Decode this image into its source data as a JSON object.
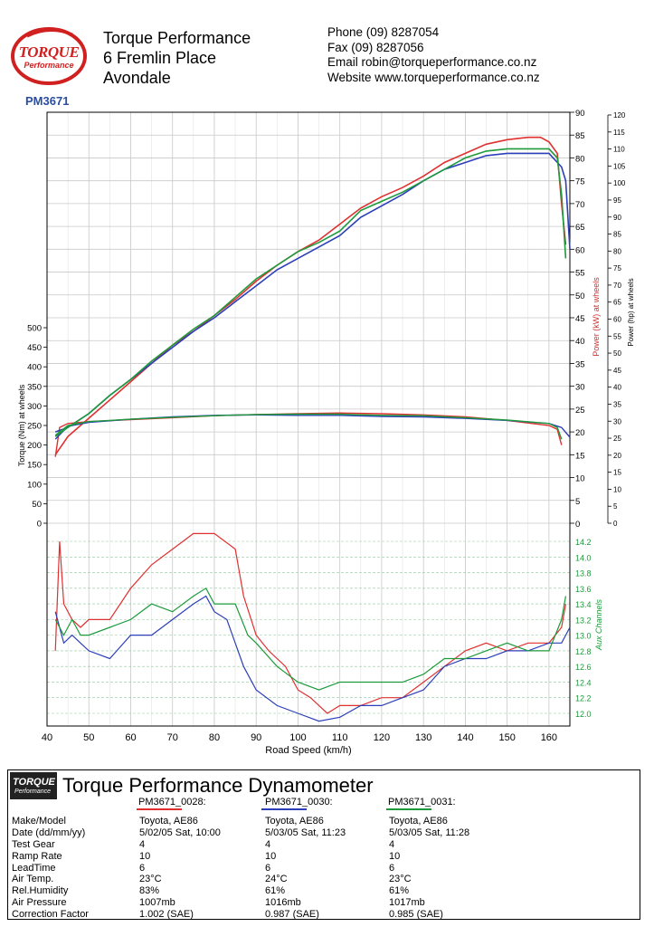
{
  "header": {
    "logo_word": "TORQUE",
    "logo_sub": "Performance",
    "report_id": "PM3671",
    "company_lines": [
      "Torque Performance",
      "6 Fremlin Place",
      "Avondale"
    ],
    "contact": {
      "phone": "Phone (09) 8287054",
      "fax": "Fax     (09) 8287056",
      "email": "Email  robin@torqueperformance.co.nz",
      "website": "Website  www.torqueperformance.co.nz"
    }
  },
  "colors": {
    "run1": "#e03030",
    "run2": "#2c3fb8",
    "run3": "#1e9a3c",
    "grid": "#c8c8c8",
    "aux_axis": "#1e9a3c",
    "power_axis": "#d03030"
  },
  "chart_data": {
    "type": "line",
    "x": {
      "label": "Road Speed (km/h)",
      "min": 40,
      "max": 165,
      "ticks": [
        "40",
        "50",
        "60",
        "70",
        "80",
        "90",
        "100",
        "110",
        "120",
        "130",
        "140",
        "150",
        "160"
      ]
    },
    "y_torque": {
      "label": "Torque (Nm) at wheels",
      "min": 0,
      "max": 500,
      "ticks": [
        "0",
        "50",
        "100",
        "150",
        "200",
        "250",
        "300",
        "350",
        "400",
        "450",
        "500"
      ]
    },
    "y_power_kw": {
      "label": "Power (kW) at wheels",
      "min": 0,
      "max": 90,
      "ticks": [
        "0",
        "5",
        "10",
        "15",
        "20",
        "25",
        "30",
        "35",
        "40",
        "45",
        "50",
        "55",
        "60",
        "65",
        "70",
        "75",
        "80",
        "85",
        "90"
      ]
    },
    "y_power_hp": {
      "label": "Power (hp) at wheels",
      "min": 0,
      "max": 120,
      "ticks": [
        "0",
        "5",
        "10",
        "15",
        "20",
        "25",
        "30",
        "35",
        "40",
        "45",
        "50",
        "55",
        "60",
        "65",
        "70",
        "75",
        "80",
        "85",
        "90",
        "95",
        "100",
        "105",
        "110",
        "115",
        "120"
      ]
    },
    "y_aux": {
      "label": "Aux Channels",
      "min": 11.9,
      "max": 14.3,
      "ticks": [
        "12.0",
        "12.2",
        "12.4",
        "12.6",
        "12.8",
        "13.0",
        "13.2",
        "13.4",
        "13.6",
        "13.8",
        "14.0",
        "14.2"
      ]
    },
    "grid": true,
    "series": [
      {
        "name": "PM3671_0028",
        "color_key": "run1",
        "power_kw": [
          [
            42,
            15
          ],
          [
            45,
            19
          ],
          [
            50,
            23
          ],
          [
            55,
            27
          ],
          [
            60,
            31
          ],
          [
            65,
            35
          ],
          [
            70,
            39
          ],
          [
            75,
            42
          ],
          [
            80,
            45.5
          ],
          [
            85,
            49
          ],
          [
            90,
            53
          ],
          [
            95,
            56.5
          ],
          [
            100,
            59.5
          ],
          [
            105,
            62
          ],
          [
            110,
            65.5
          ],
          [
            115,
            69
          ],
          [
            120,
            71.5
          ],
          [
            125,
            73.5
          ],
          [
            130,
            76
          ],
          [
            135,
            79
          ],
          [
            140,
            81
          ],
          [
            145,
            83
          ],
          [
            150,
            84
          ],
          [
            155,
            84.5
          ],
          [
            158,
            84.5
          ],
          [
            160,
            83.5
          ],
          [
            162,
            81
          ],
          [
            163,
            70
          ],
          [
            164,
            61
          ]
        ],
        "torque": [
          [
            42,
            170
          ],
          [
            43,
            245
          ],
          [
            45,
            255
          ],
          [
            50,
            260
          ],
          [
            60,
            265
          ],
          [
            70,
            270
          ],
          [
            80,
            275
          ],
          [
            90,
            278
          ],
          [
            100,
            280
          ],
          [
            110,
            282
          ],
          [
            120,
            280
          ],
          [
            130,
            277
          ],
          [
            140,
            272
          ],
          [
            150,
            263
          ],
          [
            160,
            250
          ],
          [
            162,
            240
          ],
          [
            163,
            200
          ]
        ],
        "aux": [
          [
            42,
            12.8
          ],
          [
            43,
            14.2
          ],
          [
            44,
            13.4
          ],
          [
            46,
            13.2
          ],
          [
            48,
            13.1
          ],
          [
            50,
            13.2
          ],
          [
            55,
            13.2
          ],
          [
            60,
            13.6
          ],
          [
            65,
            13.9
          ],
          [
            70,
            14.1
          ],
          [
            75,
            14.3
          ],
          [
            80,
            14.3
          ],
          [
            85,
            14.1
          ],
          [
            87,
            13.5
          ],
          [
            90,
            13.0
          ],
          [
            93,
            12.8
          ],
          [
            97,
            12.6
          ],
          [
            100,
            12.3
          ],
          [
            103,
            12.2
          ],
          [
            107,
            12.0
          ],
          [
            110,
            12.1
          ],
          [
            115,
            12.1
          ],
          [
            120,
            12.2
          ],
          [
            125,
            12.2
          ],
          [
            130,
            12.4
          ],
          [
            135,
            12.6
          ],
          [
            140,
            12.8
          ],
          [
            145,
            12.9
          ],
          [
            150,
            12.8
          ],
          [
            155,
            12.9
          ],
          [
            160,
            12.9
          ],
          [
            163,
            13.1
          ],
          [
            164,
            13.4
          ]
        ]
      },
      {
        "name": "PM3671_0030",
        "color_key": "run2",
        "power_kw": [
          [
            42,
            20
          ],
          [
            45,
            21
          ],
          [
            50,
            24
          ],
          [
            55,
            28
          ],
          [
            60,
            31.5
          ],
          [
            65,
            35
          ],
          [
            70,
            38.5
          ],
          [
            75,
            42
          ],
          [
            80,
            45
          ],
          [
            85,
            48.5
          ],
          [
            90,
            52
          ],
          [
            95,
            55.5
          ],
          [
            100,
            58
          ],
          [
            105,
            60.5
          ],
          [
            110,
            63
          ],
          [
            115,
            67
          ],
          [
            120,
            69.5
          ],
          [
            125,
            72
          ],
          [
            130,
            75
          ],
          [
            135,
            77.5
          ],
          [
            140,
            79
          ],
          [
            145,
            80.5
          ],
          [
            150,
            81
          ],
          [
            155,
            81
          ],
          [
            160,
            81
          ],
          [
            163,
            78
          ],
          [
            164,
            75
          ],
          [
            165,
            60
          ]
        ],
        "torque": [
          [
            42,
            215
          ],
          [
            45,
            248
          ],
          [
            50,
            258
          ],
          [
            60,
            266
          ],
          [
            70,
            272
          ],
          [
            80,
            276
          ],
          [
            90,
            277
          ],
          [
            100,
            276
          ],
          [
            110,
            276
          ],
          [
            120,
            273
          ],
          [
            130,
            272
          ],
          [
            140,
            268
          ],
          [
            150,
            263
          ],
          [
            160,
            255
          ],
          [
            163,
            245
          ],
          [
            165,
            220
          ]
        ],
        "aux": [
          [
            42,
            13.3
          ],
          [
            44,
            12.9
          ],
          [
            46,
            13.0
          ],
          [
            48,
            12.9
          ],
          [
            50,
            12.8
          ],
          [
            55,
            12.7
          ],
          [
            60,
            13.0
          ],
          [
            65,
            13.0
          ],
          [
            70,
            13.2
          ],
          [
            75,
            13.4
          ],
          [
            78,
            13.5
          ],
          [
            80,
            13.3
          ],
          [
            83,
            13.2
          ],
          [
            87,
            12.6
          ],
          [
            90,
            12.3
          ],
          [
            95,
            12.1
          ],
          [
            100,
            12.0
          ],
          [
            105,
            11.9
          ],
          [
            110,
            11.95
          ],
          [
            115,
            12.1
          ],
          [
            120,
            12.1
          ],
          [
            125,
            12.2
          ],
          [
            130,
            12.3
          ],
          [
            135,
            12.6
          ],
          [
            140,
            12.7
          ],
          [
            145,
            12.7
          ],
          [
            150,
            12.8
          ],
          [
            155,
            12.8
          ],
          [
            160,
            12.9
          ],
          [
            163,
            12.9
          ],
          [
            165,
            13.1
          ]
        ]
      },
      {
        "name": "PM3671_0031",
        "color_key": "run3",
        "power_kw": [
          [
            42,
            19
          ],
          [
            45,
            21
          ],
          [
            50,
            24
          ],
          [
            55,
            28
          ],
          [
            60,
            31.5
          ],
          [
            65,
            35.5
          ],
          [
            70,
            39
          ],
          [
            75,
            42.5
          ],
          [
            80,
            45.5
          ],
          [
            85,
            49.5
          ],
          [
            90,
            53.5
          ],
          [
            95,
            56.5
          ],
          [
            100,
            59.5
          ],
          [
            105,
            61.5
          ],
          [
            110,
            64
          ],
          [
            115,
            68.5
          ],
          [
            120,
            70.5
          ],
          [
            125,
            72.5
          ],
          [
            130,
            75
          ],
          [
            135,
            77.5
          ],
          [
            140,
            80
          ],
          [
            145,
            81.5
          ],
          [
            150,
            82
          ],
          [
            155,
            82
          ],
          [
            160,
            82
          ],
          [
            162,
            80
          ],
          [
            163,
            72
          ],
          [
            164,
            58
          ]
        ],
        "torque": [
          [
            42,
            225
          ],
          [
            45,
            250
          ],
          [
            50,
            260
          ],
          [
            60,
            266
          ],
          [
            70,
            271
          ],
          [
            80,
            275
          ],
          [
            90,
            278
          ],
          [
            100,
            279
          ],
          [
            110,
            279
          ],
          [
            120,
            276
          ],
          [
            130,
            275
          ],
          [
            140,
            270
          ],
          [
            150,
            264
          ],
          [
            160,
            255
          ],
          [
            162,
            245
          ],
          [
            163,
            215
          ]
        ],
        "aux": [
          [
            42,
            13.2
          ],
          [
            44,
            13.0
          ],
          [
            46,
            13.2
          ],
          [
            48,
            13.0
          ],
          [
            50,
            13.0
          ],
          [
            55,
            13.1
          ],
          [
            60,
            13.2
          ],
          [
            65,
            13.4
          ],
          [
            70,
            13.3
          ],
          [
            75,
            13.5
          ],
          [
            78,
            13.6
          ],
          [
            80,
            13.4
          ],
          [
            85,
            13.4
          ],
          [
            88,
            13.0
          ],
          [
            90,
            12.9
          ],
          [
            95,
            12.6
          ],
          [
            100,
            12.4
          ],
          [
            105,
            12.3
          ],
          [
            110,
            12.4
          ],
          [
            115,
            12.4
          ],
          [
            120,
            12.4
          ],
          [
            125,
            12.4
          ],
          [
            130,
            12.5
          ],
          [
            135,
            12.7
          ],
          [
            140,
            12.7
          ],
          [
            145,
            12.8
          ],
          [
            150,
            12.9
          ],
          [
            155,
            12.8
          ],
          [
            160,
            12.8
          ],
          [
            163,
            13.2
          ],
          [
            164,
            13.5
          ]
        ]
      }
    ]
  },
  "footer": {
    "title": "Torque Performance Dynamometer",
    "logo_word": "TORQUE",
    "logo_sub": "Performance",
    "runs": [
      "PM3671_0028:",
      "PM3671_0030:",
      "PM3671_0031:"
    ],
    "rows": [
      {
        "label": "Make/Model",
        "values": [
          "Toyota, AE86",
          "Toyota, AE86",
          "Toyota, AE86"
        ]
      },
      {
        "label": "Date (dd/mm/yy)",
        "values": [
          "5/02/05 Sat, 10:00",
          "5/03/05 Sat, 11:23",
          "5/03/05 Sat, 11:28"
        ]
      },
      {
        "label": "Test Gear",
        "values": [
          "4",
          "4",
          "4"
        ]
      },
      {
        "label": "Ramp Rate",
        "values": [
          "10",
          "10",
          "10"
        ]
      },
      {
        "label": "LeadTime",
        "values": [
          "6",
          "6",
          "6"
        ]
      },
      {
        "label": "Air Temp.",
        "values": [
          "23°C",
          "24°C",
          "23°C"
        ]
      },
      {
        "label": "Rel.Humidity",
        "values": [
          "83%",
          "61%",
          "61%"
        ]
      },
      {
        "label": "Air Pressure",
        "values": [
          "1007mb",
          "1016mb",
          "1017mb"
        ]
      },
      {
        "label": "Correction Factor",
        "values": [
          "1.002 (SAE)",
          "0.987 (SAE)",
          "0.985 (SAE)"
        ]
      }
    ]
  }
}
